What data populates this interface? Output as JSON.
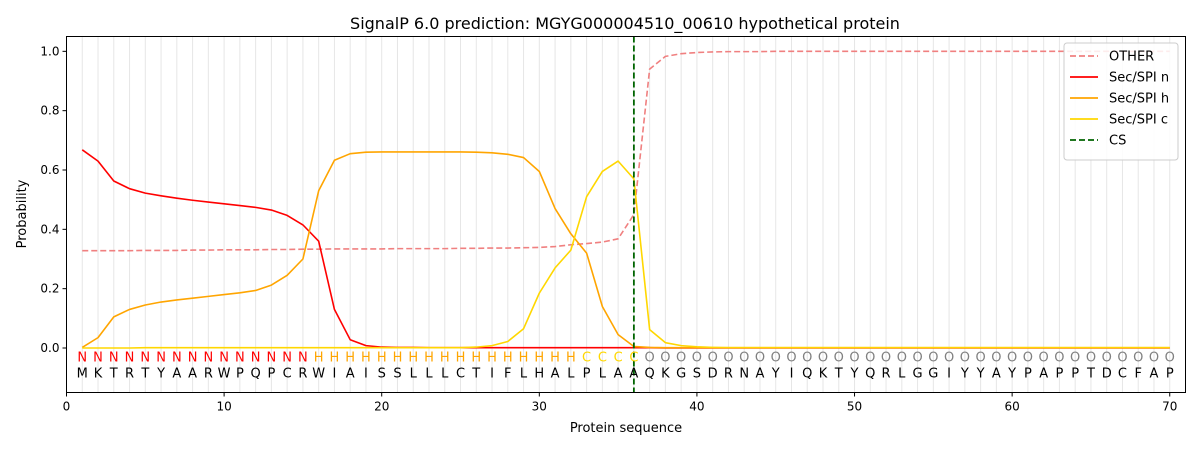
{
  "chart_data": {
    "type": "line",
    "title": "SignalP 6.0 prediction: MGYG000004510_00610 hypothetical protein",
    "xlabel": "Protein sequence",
    "ylabel": "Probability",
    "xlim": [
      0,
      71
    ],
    "ylim": [
      -0.15,
      1.05
    ],
    "x_ticks": [
      0,
      10,
      20,
      30,
      40,
      50,
      60,
      70
    ],
    "y_ticks": [
      "0.0",
      "0.2",
      "0.4",
      "0.6",
      "0.8",
      "1.0"
    ],
    "grid": "vertical lines at each residue",
    "legend_position": "top-right",
    "sequence": [
      "M",
      "K",
      "T",
      "R",
      "T",
      "Y",
      "A",
      "A",
      "R",
      "W",
      "P",
      "Q",
      "P",
      "C",
      "R",
      "W",
      "I",
      "A",
      "I",
      "S",
      "S",
      "L",
      "L",
      "L",
      "C",
      "T",
      "I",
      "F",
      "L",
      "H",
      "A",
      "L",
      "P",
      "L",
      "A",
      "A",
      "Q",
      "K",
      "G",
      "S",
      "D",
      "R",
      "N",
      "A",
      "Y",
      "I",
      "Q",
      "K",
      "T",
      "Y",
      "Q",
      "R",
      "L",
      "G",
      "G",
      "I",
      "Y",
      "Y",
      "A",
      "Y",
      "P",
      "A",
      "P",
      "P",
      "T",
      "D",
      "C",
      "F",
      "A",
      "P"
    ],
    "labels": [
      "N",
      "N",
      "N",
      "N",
      "N",
      "N",
      "N",
      "N",
      "N",
      "N",
      "N",
      "N",
      "N",
      "N",
      "N",
      "H",
      "H",
      "H",
      "H",
      "H",
      "H",
      "H",
      "H",
      "H",
      "H",
      "H",
      "H",
      "H",
      "H",
      "H",
      "H",
      "H",
      "C",
      "C",
      "C",
      "C",
      "O",
      "O",
      "O",
      "O",
      "O",
      "O",
      "O",
      "O",
      "O",
      "O",
      "O",
      "O",
      "O",
      "O",
      "O",
      "O",
      "O",
      "O",
      "O",
      "O",
      "O",
      "O",
      "O",
      "O",
      "O",
      "O",
      "O",
      "O",
      "O",
      "O",
      "O",
      "O",
      "O",
      "O"
    ],
    "label_colors": {
      "N": "#ff0000",
      "H": "#ffa500",
      "C": "#ffd700",
      "O": "#808080"
    },
    "cs_position": 36,
    "series": [
      {
        "name": "OTHER",
        "color": "#f08080",
        "dash": true,
        "values": [
          0.328,
          0.328,
          0.328,
          0.328,
          0.329,
          0.329,
          0.329,
          0.33,
          0.33,
          0.331,
          0.331,
          0.331,
          0.332,
          0.332,
          0.333,
          0.333,
          0.334,
          0.334,
          0.334,
          0.334,
          0.335,
          0.335,
          0.335,
          0.335,
          0.336,
          0.336,
          0.337,
          0.337,
          0.338,
          0.339,
          0.342,
          0.348,
          0.352,
          0.357,
          0.368,
          0.45,
          0.94,
          0.983,
          0.992,
          0.996,
          0.998,
          0.999,
          0.999,
          0.999,
          1.0,
          1.0,
          1.0,
          1.0,
          1.0,
          1.0,
          1.0,
          1.0,
          1.0,
          1.0,
          1.0,
          1.0,
          1.0,
          1.0,
          1.0,
          1.0,
          1.0,
          1.0,
          1.0,
          1.0,
          1.0,
          1.0,
          1.0,
          1.0,
          1.0,
          1.0
        ]
      },
      {
        "name": "Sec/SPI n",
        "color": "#ff0000",
        "dash": false,
        "values": [
          0.668,
          0.63,
          0.563,
          0.537,
          0.522,
          0.513,
          0.505,
          0.498,
          0.492,
          0.486,
          0.48,
          0.474,
          0.465,
          0.447,
          0.415,
          0.36,
          0.13,
          0.028,
          0.008,
          0.003,
          0.002,
          0.002,
          0.001,
          0.001,
          0.001,
          0.001,
          0.001,
          0.001,
          0.001,
          0.001,
          0.001,
          0.001,
          0.001,
          0.001,
          0.001,
          0.001,
          0.001,
          0.0,
          0.0,
          0.0,
          0.0,
          0.0,
          0.0,
          0.0,
          0.0,
          0.0,
          0.0,
          0.0,
          0.0,
          0.0,
          0.0,
          0.0,
          0.0,
          0.0,
          0.0,
          0.0,
          0.0,
          0.0,
          0.0,
          0.0,
          0.0,
          0.0,
          0.0,
          0.0,
          0.0,
          0.0,
          0.0,
          0.0,
          0.0,
          0.0
        ]
      },
      {
        "name": "Sec/SPI h",
        "color": "#ffa500",
        "dash": false,
        "values": [
          0.002,
          0.035,
          0.105,
          0.13,
          0.145,
          0.155,
          0.162,
          0.168,
          0.174,
          0.18,
          0.186,
          0.194,
          0.212,
          0.245,
          0.3,
          0.53,
          0.633,
          0.655,
          0.66,
          0.661,
          0.661,
          0.661,
          0.661,
          0.661,
          0.661,
          0.66,
          0.658,
          0.653,
          0.642,
          0.595,
          0.47,
          0.385,
          0.32,
          0.14,
          0.045,
          0.005,
          0.002,
          0.001,
          0.001,
          0.001,
          0.001,
          0.001,
          0.001,
          0.001,
          0.001,
          0.001,
          0.001,
          0.001,
          0.001,
          0.001,
          0.001,
          0.001,
          0.001,
          0.001,
          0.001,
          0.001,
          0.001,
          0.001,
          0.001,
          0.001,
          0.001,
          0.001,
          0.001,
          0.001,
          0.001,
          0.001,
          0.001,
          0.001,
          0.001,
          0.001
        ]
      },
      {
        "name": "Sec/SPI c",
        "color": "#ffd700",
        "dash": false,
        "values": [
          0.0,
          0.0,
          0.0,
          0.0,
          0.001,
          0.001,
          0.001,
          0.001,
          0.001,
          0.001,
          0.001,
          0.001,
          0.001,
          0.001,
          0.001,
          0.001,
          0.001,
          0.001,
          0.001,
          0.001,
          0.001,
          0.001,
          0.001,
          0.001,
          0.001,
          0.003,
          0.008,
          0.022,
          0.065,
          0.185,
          0.27,
          0.33,
          0.51,
          0.595,
          0.63,
          0.57,
          0.062,
          0.018,
          0.008,
          0.004,
          0.002,
          0.001,
          0.001,
          0.001,
          0.001,
          0.001,
          0.001,
          0.001,
          0.001,
          0.001,
          0.001,
          0.001,
          0.001,
          0.001,
          0.001,
          0.001,
          0.001,
          0.001,
          0.001,
          0.001,
          0.001,
          0.001,
          0.001,
          0.001,
          0.001,
          0.001,
          0.001,
          0.001,
          0.001,
          0.001
        ]
      }
    ],
    "cs_legend": {
      "name": "CS",
      "color": "#006400"
    }
  }
}
